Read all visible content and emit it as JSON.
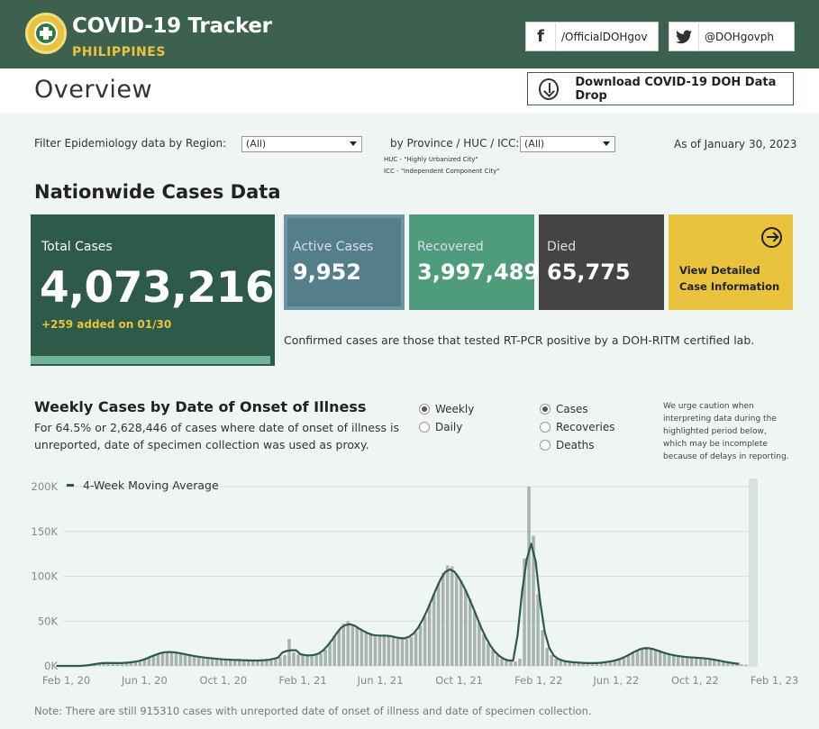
{
  "header": {
    "title": "COVID-19 Tracker",
    "subtitle": "PHILIPPINES",
    "facebook": "/OfficialDOHgov",
    "twitter": "@DOHgovph"
  },
  "overview": {
    "title": "Overview",
    "download_label": "Download COVID-19 DOH Data Drop"
  },
  "filters": {
    "region_label": "Filter Epidemiology data by Region:",
    "region_value": "(All)",
    "province_label": "by Province / HUC / ICC:",
    "province_value": "(All)",
    "huc_note": "HUC - \"Highly Urbanized City\"",
    "icc_note": "ICC - \"Independent Component City\"",
    "as_of": "As of January 30, 2023"
  },
  "nationwide": {
    "title": "Nationwide Cases Data",
    "total_label": "Total Cases",
    "total_value": "4,073,216",
    "total_added": "+259 added on 01/30",
    "active_label": "Active Cases",
    "active_value": "9,952",
    "recovered_label": "Recovered",
    "recovered_value": "3,997,489",
    "died_label": "Died",
    "died_value": "65,775",
    "detail_line1": "View Detailed",
    "detail_line2": "Case Information",
    "confirmed_note": "Confirmed cases are those that tested RT-PCR positive by a DOH-RITM certified lab."
  },
  "weekly": {
    "title": "Weekly Cases by Date of Onset of Illness",
    "subtitle": "For 64.5% or 2,628,446 of cases where date of onset of illness is unreported, date of specimen collection was used as proxy.",
    "period_options": [
      "Weekly",
      "Daily"
    ],
    "period_selected": "Weekly",
    "measure_options": [
      "Cases",
      "Recoveries",
      "Deaths"
    ],
    "measure_selected": "Cases",
    "caution": "We urge caution when interpreting data during the highlighted period below, which may be incomplete because of delays in reporting.",
    "legend": "4-Week Moving Average",
    "bottom_note": "Note: There are still 915310 cases with unreported date of onset of illness and date of specimen collection."
  },
  "colors": {
    "header": "#3d614f",
    "total_card": "#2e5a4a",
    "active": "#547f8a",
    "recovered": "#4f9c7d",
    "died": "#444444",
    "detail": "#e9c33d",
    "bars": "#a7b4ae",
    "line": "#2e5a4a"
  },
  "chart_data": {
    "type": "bar",
    "ylim": [
      0,
      200000
    ],
    "yticks": [
      "0K",
      "50K",
      "100K",
      "150K",
      "200K"
    ],
    "xticks": [
      "Feb 1, 20",
      "Jun 1, 20",
      "Oct 1, 20",
      "Feb 1, 21",
      "Jun 1, 21",
      "Oct 1, 21",
      "Feb 1, 22",
      "Jun 1, 22",
      "Oct 1, 22",
      "Feb 1, 23"
    ],
    "x_start": "2020-01-27",
    "week_days": 7,
    "series": [
      {
        "type": "bar",
        "values": [
          0,
          0,
          0,
          0,
          0,
          0,
          1000,
          2000,
          3000,
          3500,
          3500,
          3000,
          3000,
          3000,
          3500,
          4000,
          4500,
          5500,
          7000,
          9000,
          12000,
          14000,
          15000,
          16000,
          16000,
          15000,
          14000,
          13000,
          12000,
          11000,
          10000,
          9500,
          9000,
          8500,
          8000,
          7500,
          7000,
          7000,
          6500,
          6500,
          6500,
          6000,
          6000,
          6000,
          6000,
          6500,
          7000,
          8000,
          10000,
          12000,
          30000,
          15000,
          13000,
          12000,
          12000,
          11000,
          12000,
          14000,
          18000,
          25000,
          34000,
          40000,
          47000,
          50000,
          46000,
          43000,
          40000,
          37000,
          35000,
          33000,
          33000,
          35000,
          34000,
          33000,
          31000,
          30000,
          30000,
          32000,
          38000,
          45000,
          55000,
          68000,
          80000,
          92000,
          104000,
          112000,
          111000,
          103000,
          95000,
          85000,
          75000,
          60000,
          48000,
          35000,
          25000,
          18000,
          12000,
          8000,
          6000,
          5000,
          5000,
          8000,
          120000,
          200000,
          145000,
          80000,
          40000,
          20000,
          12000,
          8000,
          6000,
          5000,
          4500,
          4000,
          3500,
          3500,
          3000,
          3000,
          3000,
          3500,
          4000,
          5000,
          6000,
          7000,
          9000,
          12000,
          15000,
          18000,
          20000,
          21000,
          20000,
          18000,
          16000,
          14000,
          13000,
          12000,
          11000,
          10000,
          10000,
          9500,
          9000,
          9000,
          8500,
          8000,
          7000,
          6000,
          5000,
          4000,
          3000,
          2500,
          2000,
          1500
        ],
        "name": ""
      },
      {
        "type": "line",
        "name": "4-Week Moving Average"
      }
    ],
    "highlight": "last weeks (incomplete period)"
  }
}
